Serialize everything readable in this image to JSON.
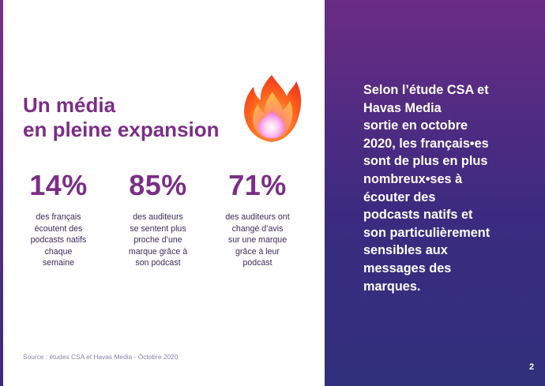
{
  "headline": {
    "line1": "Un média",
    "line2": "en pleine expansion"
  },
  "stats": [
    {
      "value": "14%",
      "lines": [
        "des français",
        "écoutent des",
        "podcasts natifs",
        "chaque",
        "semaine"
      ]
    },
    {
      "value": "85%",
      "lines": [
        "des auditeurs",
        "se sentent plus",
        "proche d’une",
        "marque grâce à",
        "son podcast"
      ]
    },
    {
      "value": "71%",
      "lines": [
        "des auditeurs ont",
        "changé d’avis",
        "sur une marque",
        "grâce à leur",
        "podcast"
      ]
    }
  ],
  "source": "Source : études CSA et Havas Media - Octobre 2020",
  "quote": {
    "lines": [
      "Selon l’étude CSA et",
      "Havas Media",
      "sortie en octobre",
      "2020, les français•es",
      "sont de plus en plus",
      "nombreux•ses à",
      "écouter des",
      "podcasts natifs et",
      "son particulièrement",
      "sensibles aux",
      "messages des",
      "marques."
    ]
  },
  "page_number": "2",
  "icons": {
    "headline_icon": "fire-icon"
  },
  "colors": {
    "accent_purple": "#7b2e86",
    "panel_top": "#6a2c84",
    "panel_bottom": "#30307c",
    "body_text": "#3b2b5a"
  }
}
